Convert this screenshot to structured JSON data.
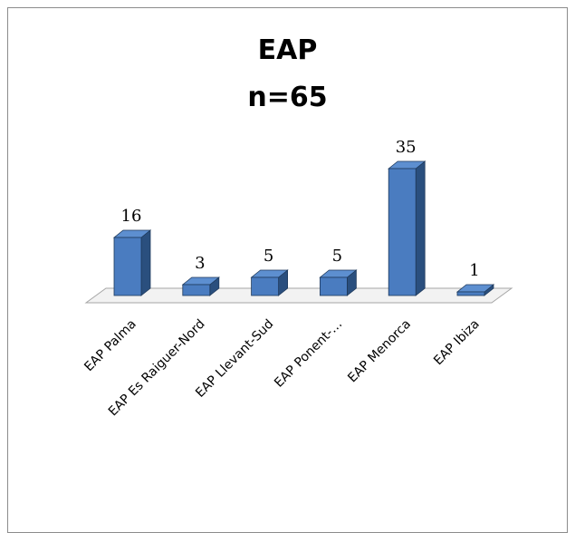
{
  "chart_data": {
    "type": "bar",
    "title": "EAP",
    "subtitle": "n=65",
    "categories": [
      "EAP Palma",
      "EAP Es Raiguer-Nord",
      "EAP Llevant-Sud",
      "EAP Ponent-…",
      "EAP Menorca",
      "EAP Ibiza"
    ],
    "values": [
      16,
      3,
      5,
      5,
      35,
      1
    ],
    "value_labels": [
      "16",
      "3",
      "5",
      "5",
      "35",
      "1"
    ],
    "ylim": [
      0,
      35
    ],
    "grid": false,
    "legend": "none",
    "style": "3d-column",
    "colors": {
      "bar_front": "#4a7cc0",
      "bar_side": "#2a4f7e",
      "bar_top": "#5d8fd0",
      "bar_edge": "#1f3a5c",
      "floor_fill": "#f2f2f2",
      "floor_edge": "#a6a6a6"
    }
  }
}
